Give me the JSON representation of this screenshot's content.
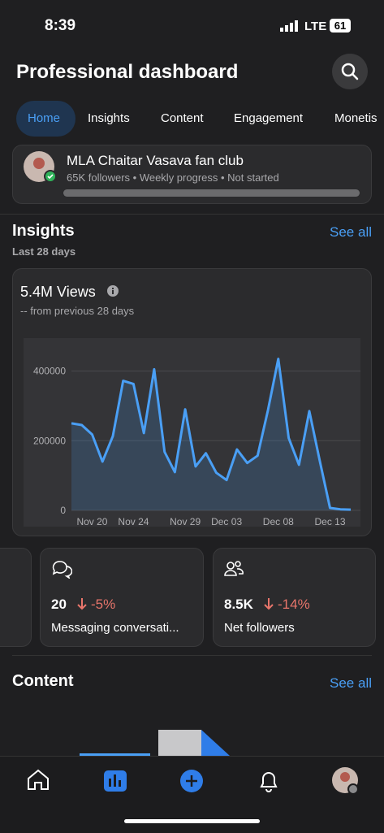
{
  "status": {
    "time": "8:39",
    "network": "LTE",
    "battery": "61"
  },
  "header": {
    "title": "Professional dashboard"
  },
  "tabs": [
    "Home",
    "Insights",
    "Content",
    "Engagement",
    "Monetis"
  ],
  "profile": {
    "name": "MLA Chaitar Vasava fan club",
    "subtitle": "65K followers • Weekly progress • Not started"
  },
  "insights": {
    "title": "Insights",
    "see_all": "See all",
    "period": "Last 28 days",
    "views_title": "5.4M Views",
    "views_change": "-- from previous 28 days"
  },
  "chart_data": {
    "type": "line",
    "categories": [
      null,
      null,
      "Nov 20",
      null,
      null,
      null,
      "Nov 24",
      null,
      null,
      null,
      null,
      "Nov 29",
      null,
      null,
      null,
      "Dec 03",
      null,
      null,
      null,
      null,
      "Dec 08",
      null,
      null,
      null,
      null,
      "Dec 13",
      null,
      null
    ],
    "values": [
      250000,
      245000,
      218000,
      140000,
      213000,
      372000,
      363000,
      222000,
      405000,
      168000,
      110000,
      290000,
      126000,
      164000,
      108000,
      87000,
      175000,
      136000,
      157000,
      288000,
      435000,
      208000,
      131000,
      285000,
      143000,
      7000,
      3000,
      2000
    ],
    "color": "#4a9ff5",
    "ylim": [
      0,
      490000
    ],
    "yticks": [
      0,
      200000,
      400000
    ],
    "grid": true
  },
  "metrics": [
    {
      "value": "20",
      "change": "-5%",
      "label": "Messaging conversati..."
    },
    {
      "value": "8.5K",
      "change": "-14%",
      "label": "Net followers"
    }
  ],
  "content": {
    "title": "Content",
    "see_all": "See all"
  }
}
